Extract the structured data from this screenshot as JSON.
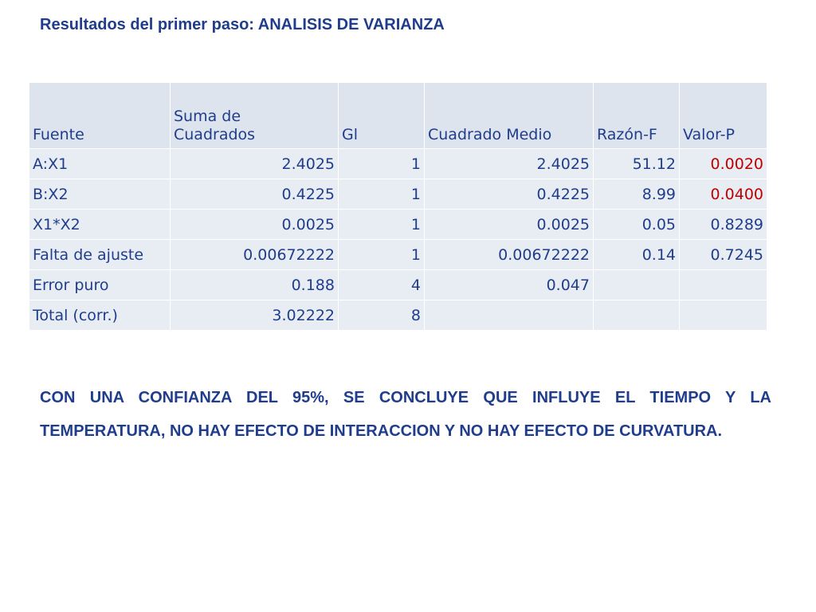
{
  "title": "Resultados del primer paso: ANALISIS DE VARIANZA",
  "table": {
    "headers": [
      "Fuente",
      "Suma de Cuadrados",
      "Gl",
      "Cuadrado Medio",
      "Razón-F",
      "Valor-P"
    ],
    "rows": [
      [
        "A:X1",
        "2.4025",
        "1",
        "2.4025",
        "51.12",
        "0.0020"
      ],
      [
        "B:X2",
        "0.4225",
        "1",
        "0.4225",
        "8.99",
        "0.0400"
      ],
      [
        "X1*X2",
        "0.0025",
        "1",
        "0.0025",
        "0.05",
        "0.8289"
      ],
      [
        "Falta de ajuste",
        "0.00672222",
        "1",
        "0.00672222",
        "0.14",
        "0.7245"
      ],
      [
        "Error puro",
        "0.188",
        "4",
        "0.047",
        "",
        ""
      ],
      [
        "Total (corr.)",
        "3.02222",
        "8",
        "",
        "",
        ""
      ]
    ]
  },
  "conclusion": "CON UNA CONFIANZA DEL 95%, SE CONCLUYE QUE INFLUYE EL TIEMPO Y LA TEMPERATURA, NO HAY EFECTO DE INTERACCION Y NO HAY EFECTO DE CURVATURA.",
  "colors": {
    "text": "#1f3d8c",
    "significant": "#c00000",
    "header_bg": "#dde4ee",
    "row_bg": "#e8edf3"
  }
}
